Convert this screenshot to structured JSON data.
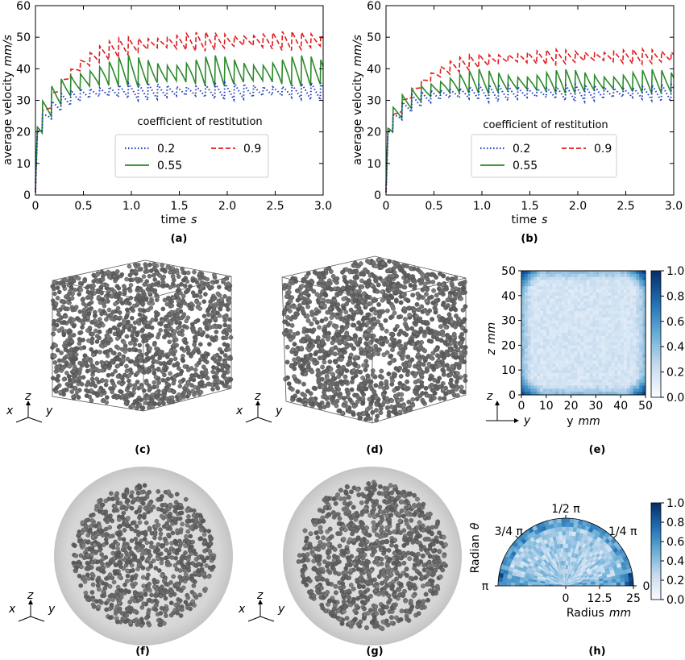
{
  "chart_data": [
    {
      "panel": "(a)",
      "type": "line",
      "xlabel": "time",
      "xunit": "s",
      "ylabel": "average velocity",
      "yunit": "mm/s",
      "xlim": [
        0,
        3.0
      ],
      "ylim": [
        0,
        60
      ],
      "xticks": [
        "0",
        "0.5",
        "1.0",
        "1.5",
        "2.0",
        "2.5",
        "3.0"
      ],
      "yticks": [
        "0",
        "10",
        "20",
        "30",
        "40",
        "50",
        "60"
      ],
      "legend_title": "coefficient of restitution",
      "series": [
        {
          "name": "0.2",
          "style": "dotted",
          "color": "#1f3fbf",
          "plateau": 33,
          "amplitude": 2.5,
          "rise": 0.2
        },
        {
          "name": "0.55",
          "style": "solid",
          "color": "#2a8a2a",
          "plateau": 38,
          "amplitude": 4.5,
          "rise": 0.25
        },
        {
          "name": "0.9",
          "style": "dashed",
          "color": "#e01b1b",
          "plateau": 49,
          "amplitude": 2.8,
          "rise": 0.35
        }
      ]
    },
    {
      "panel": "(b)",
      "type": "line",
      "xlabel": "time",
      "xunit": "s",
      "ylabel": "average velocity",
      "yunit": "mm/s",
      "xlim": [
        0,
        3.0
      ],
      "ylim": [
        0,
        60
      ],
      "xticks": [
        "0",
        "0.5",
        "1.0",
        "1.5",
        "2.0",
        "2.5",
        "3.0"
      ],
      "yticks": [
        "0",
        "10",
        "20",
        "30",
        "40",
        "50",
        "60"
      ],
      "legend_title": "coefficient of restitution",
      "series": [
        {
          "name": "0.2",
          "style": "dotted",
          "color": "#1f3fbf",
          "plateau": 32.5,
          "amplitude": 2.5,
          "rise": 0.2
        },
        {
          "name": "0.55",
          "style": "solid",
          "color": "#2a8a2a",
          "plateau": 35,
          "amplitude": 3.5,
          "rise": 0.25
        },
        {
          "name": "0.9",
          "style": "dashed",
          "color": "#e01b1b",
          "plateau": 44,
          "amplitude": 2.2,
          "rise": 0.35
        }
      ]
    },
    {
      "panel": "(e)",
      "type": "heatmap",
      "xlabel": "y",
      "xunit": "mm",
      "ylabel": "z",
      "yunit": "mm",
      "xticks": [
        "0",
        "10",
        "20",
        "30",
        "40",
        "50"
      ],
      "yticks": [
        "0",
        "10",
        "20",
        "30",
        "40",
        "50"
      ],
      "colorbar_ticks": [
        "0.0",
        "0.2",
        "0.4",
        "0.6",
        "0.8",
        "1.0"
      ]
    },
    {
      "panel": "(h)",
      "type": "heatmap",
      "xlabel": "Radius",
      "xunit": "mm",
      "ylabel": "Radian",
      "ysymbol": "θ",
      "xticks": [
        "0",
        "12.5",
        "25"
      ],
      "angle_ticks": [
        "π",
        "3/4 π",
        "1/2 π",
        "1/4 π",
        "0"
      ],
      "colorbar_ticks": [
        "0.0",
        "0.2",
        "0.4",
        "0.6",
        "0.8",
        "1.0"
      ]
    }
  ],
  "captions": {
    "a": "(a)",
    "b": "(b)",
    "c": "(c)",
    "d": "(d)",
    "e": "(e)",
    "f": "(f)",
    "g": "(g)",
    "h": "(h)"
  },
  "axes3d": {
    "x": "x",
    "y": "y",
    "z": "z"
  }
}
